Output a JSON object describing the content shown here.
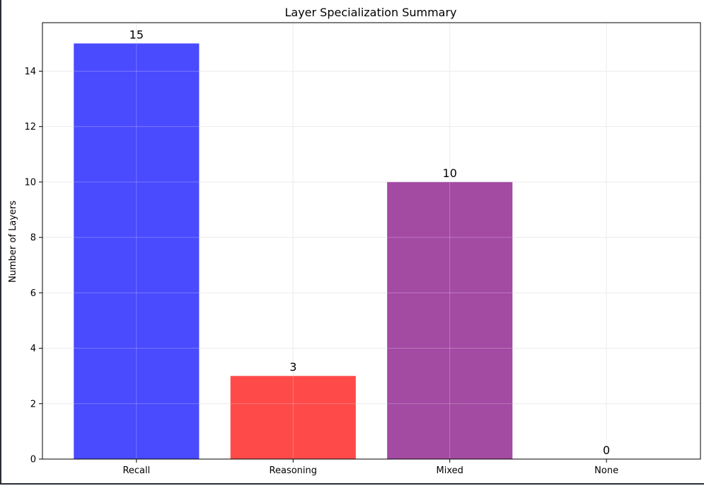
{
  "chart_data": {
    "type": "bar",
    "title": "Layer Specialization Summary",
    "xlabel": "",
    "ylabel": "Number of Layers",
    "categories": [
      "Recall",
      "Reasoning",
      "Mixed",
      "None"
    ],
    "values": [
      15,
      3,
      10,
      0
    ],
    "value_labels": [
      "15",
      "3",
      "10",
      "0"
    ],
    "colors": [
      "#4a4aff",
      "#ff4a4a",
      "#a34aa3",
      "#4a4aff"
    ],
    "ylim": [
      0,
      15.75
    ],
    "yticks": [
      0,
      2,
      4,
      6,
      8,
      10,
      12,
      14
    ],
    "ytick_labels": [
      "0",
      "2",
      "4",
      "6",
      "8",
      "10",
      "12",
      "14"
    ],
    "grid": true,
    "legend": "none"
  }
}
